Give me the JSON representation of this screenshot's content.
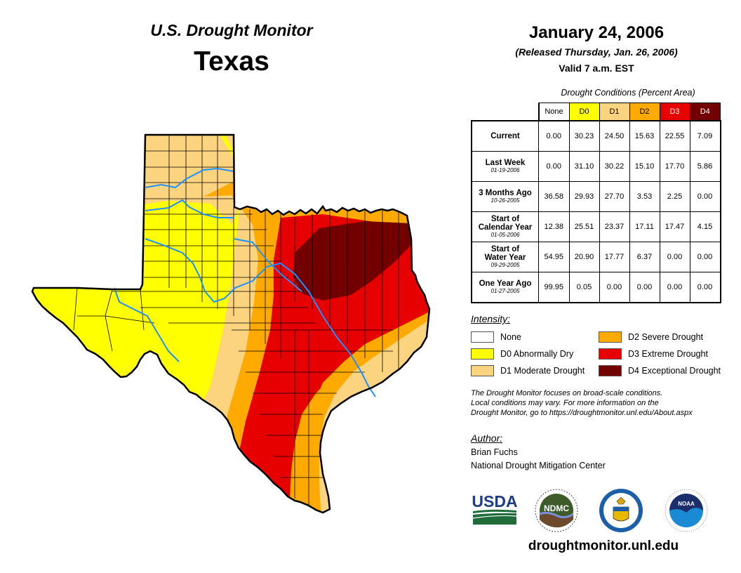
{
  "header": {
    "title": "U.S. Drought Monitor",
    "state": "Texas",
    "date": "January 24, 2006",
    "released": "(Released Thursday, Jan. 26, 2006)",
    "valid": "Valid 7 a.m. EST"
  },
  "table": {
    "caption": "Drought Conditions (Percent Area)",
    "columns": [
      {
        "label": "None",
        "color": "#ffffff",
        "text_color": "#000000"
      },
      {
        "label": "D0",
        "color": "#ffff00",
        "text_color": "#000000"
      },
      {
        "label": "D1",
        "color": "#fcd37f",
        "text_color": "#000000"
      },
      {
        "label": "D2",
        "color": "#ffaa00",
        "text_color": "#000000"
      },
      {
        "label": "D3",
        "color": "#e60000",
        "text_color": "#ffffff"
      },
      {
        "label": "D4",
        "color": "#730000",
        "text_color": "#ffffff"
      }
    ],
    "rows": [
      {
        "label": "Current",
        "label2": "",
        "date": "",
        "values": [
          "0.00",
          "30.23",
          "24.50",
          "15.63",
          "22.55",
          "7.09"
        ]
      },
      {
        "label": "Last Week",
        "label2": "",
        "date": "01-19-2006",
        "values": [
          "0.00",
          "31.10",
          "30.22",
          "15.10",
          "17.70",
          "5.86"
        ]
      },
      {
        "label": "3 Months Ago",
        "label2": "",
        "date": "10-26-2005",
        "values": [
          "36.58",
          "29.93",
          "27.70",
          "3.53",
          "2.25",
          "0.00"
        ]
      },
      {
        "label": "Start of",
        "label2": "Calendar Year",
        "date": "01-05-2006",
        "values": [
          "12.38",
          "25.51",
          "23.37",
          "17.11",
          "17.47",
          "4.15"
        ]
      },
      {
        "label": "Start of",
        "label2": "Water Year",
        "date": "09-29-2005",
        "values": [
          "54.95",
          "20.90",
          "17.77",
          "6.37",
          "0.00",
          "0.00"
        ]
      },
      {
        "label": "One Year Ago",
        "label2": "",
        "date": "01-27-2005",
        "values": [
          "99.95",
          "0.05",
          "0.00",
          "0.00",
          "0.00",
          "0.00"
        ]
      }
    ]
  },
  "legend": {
    "title": "Intensity:",
    "items": [
      {
        "label": "None",
        "color": "#ffffff"
      },
      {
        "label": "D0 Abnormally Dry",
        "color": "#ffff00"
      },
      {
        "label": "D1 Moderate Drought",
        "color": "#fcd37f"
      },
      {
        "label": "D2 Severe Drought",
        "color": "#ffaa00"
      },
      {
        "label": "D3 Extreme Drought",
        "color": "#e60000"
      },
      {
        "label": "D4 Exceptional Drought",
        "color": "#730000"
      }
    ]
  },
  "note": {
    "line1": "The Drought Monitor focuses on broad-scale conditions.",
    "line2": "Local conditions may vary. For more information on the",
    "line3": "Drought Monitor, go to https://droughtmonitor.unl.edu/About.aspx"
  },
  "author": {
    "title": "Author:",
    "name": "Brian Fuchs",
    "org": "National Drought Mitigation Center"
  },
  "logos": {
    "usda": "USDA",
    "ndmc": "NDMC",
    "noaa": "NOAA"
  },
  "footer": {
    "url": "droughtmonitor.unl.edu"
  },
  "map": {
    "colors": {
      "d0": "#ffff00",
      "d1": "#fcd37f",
      "d2": "#ffaa00",
      "d3": "#e60000",
      "d4": "#730000",
      "river": "#1e90ff",
      "border": "#000000"
    }
  }
}
